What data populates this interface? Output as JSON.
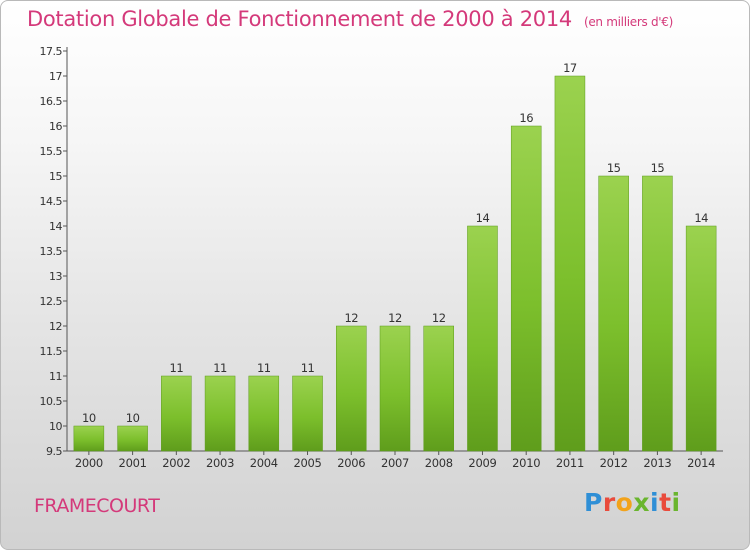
{
  "header": {
    "title": "Dotation Globale de Fonctionnement de 2000 à 2014",
    "unit": "(en milliers d'€)"
  },
  "footer": {
    "place": "FRAMECOURT",
    "logo": {
      "text": "Proxiti",
      "colors": [
        "#2f8fd6",
        "#e94b3c",
        "#f2a31b",
        "#6ab52e",
        "#2f8fd6",
        "#e94b3c",
        "#6ab52e"
      ]
    }
  },
  "chart_data": {
    "type": "bar",
    "title": "Dotation Globale de Fonctionnement de 2000 à 2014",
    "subtitle": "(en milliers d'€)",
    "xlabel": "",
    "ylabel": "",
    "categories": [
      "2000",
      "2001",
      "2002",
      "2003",
      "2004",
      "2005",
      "2006",
      "2007",
      "2008",
      "2009",
      "2010",
      "2011",
      "2012",
      "2013",
      "2014"
    ],
    "values": [
      10,
      10,
      11,
      11,
      11,
      11,
      12,
      12,
      12,
      14,
      16,
      17,
      15,
      15,
      14
    ],
    "ylim": [
      9.5,
      17.5
    ],
    "yticks": [
      "9.5",
      "10",
      "10.5",
      "11",
      "11.5",
      "12",
      "12.5",
      "13",
      "13.5",
      "14",
      "14.5",
      "15",
      "15.5",
      "16",
      "16.5",
      "17",
      "17.5"
    ],
    "bar_color": "#7cc42e",
    "grid": false,
    "legend": "none"
  }
}
